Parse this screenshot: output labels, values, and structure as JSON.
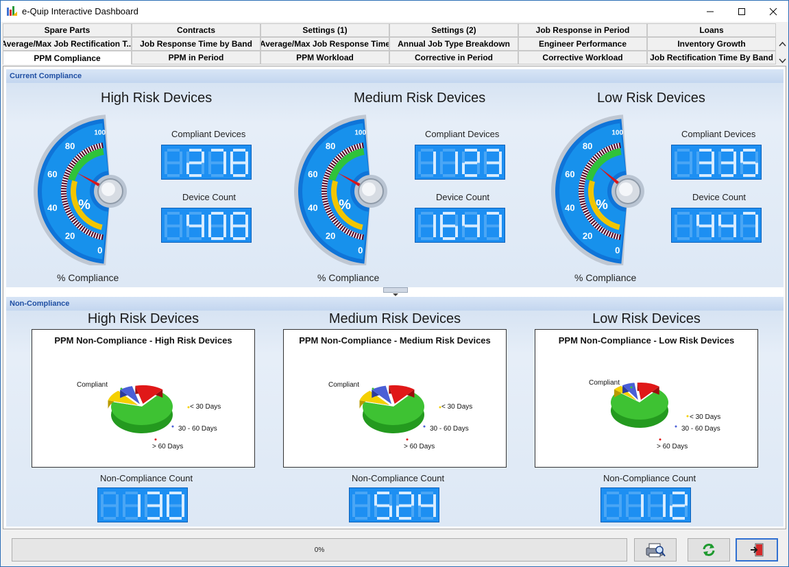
{
  "window": {
    "title": "e-Quip Interactive Dashboard"
  },
  "tabs": {
    "row1": [
      "Spare Parts",
      "Contracts",
      "Settings (1)",
      "Settings (2)",
      "Job Response in Period",
      "Loans"
    ],
    "row2": [
      "Average/Max Job Rectification T...",
      "Job Response Time by Band",
      "Average/Max Job Response Time",
      "Annual Job Type Breakdown",
      "Engineer Performance",
      "Inventory Growth"
    ],
    "row3": [
      "PPM Compliance",
      "PPM in Period",
      "PPM Workload",
      "Corrective in Period",
      "Corrective Workload",
      "Job Rectification Time By Band"
    ],
    "active": "PPM Compliance"
  },
  "current": {
    "header": "Current Compliance",
    "gauge_ticks": [
      "0",
      "20",
      "40",
      "60",
      "80",
      "100"
    ],
    "gauge_unit": "%",
    "groups": [
      {
        "title": "High Risk Devices",
        "compliant_label": "Compliant Devices",
        "compliant_value": "278",
        "count_label": "Device Count",
        "count_value": "408",
        "gauge_label": "% Compliance",
        "percent": 68.1
      },
      {
        "title": "Medium Risk Devices",
        "compliant_label": "Compliant Devices",
        "compliant_value": "1123",
        "count_label": "Device Count",
        "count_value": "1647",
        "gauge_label": "% Compliance",
        "percent": 68.2
      },
      {
        "title": "Low Risk Devices",
        "compliant_label": "Compliant Devices",
        "compliant_value": "335",
        "count_label": "Device Count",
        "count_value": "447",
        "gauge_label": "% Compliance",
        "percent": 74.9
      }
    ]
  },
  "noncompliance": {
    "header": "Non-Compliance",
    "groups": [
      {
        "title": "High Risk Devices",
        "chart_title": "PPM Non-Compliance - High Risk Devices",
        "count_label": "Non-Compliance Count",
        "count_value": "130"
      },
      {
        "title": "Medium Risk Devices",
        "chart_title": "PPM Non-Compliance - Medium Risk Devices",
        "count_label": "Non-Compliance Count",
        "count_value": "524"
      },
      {
        "title": "Low Risk Devices",
        "chart_title": "PPM Non-Compliance - Low Risk Devices",
        "count_label": "Non-Compliance Count",
        "count_value": "112"
      }
    ]
  },
  "chart_data": [
    {
      "type": "pie",
      "title": "PPM Non-Compliance - High Risk Devices",
      "categories": [
        "Compliant",
        "< 30 Days",
        "30 - 60 Days",
        "> 60 Days"
      ],
      "values": [
        68,
        10,
        7,
        15
      ],
      "colors": [
        "#3ec233",
        "#f5d000",
        "#4a5fd6",
        "#e01818"
      ]
    },
    {
      "type": "pie",
      "title": "PPM Non-Compliance - Medium Risk Devices",
      "categories": [
        "Compliant",
        "< 30 Days",
        "30 - 60 Days",
        "> 60 Days"
      ],
      "values": [
        68,
        10,
        8,
        14
      ],
      "colors": [
        "#3ec233",
        "#f5d000",
        "#4a5fd6",
        "#e01818"
      ]
    },
    {
      "type": "pie",
      "title": "PPM Non-Compliance - Low Risk Devices",
      "categories": [
        "Compliant",
        "< 30 Days",
        "30 - 60 Days",
        "> 60 Days"
      ],
      "values": [
        75,
        5,
        7,
        13
      ],
      "colors": [
        "#3ec233",
        "#f5d000",
        "#4a5fd6",
        "#e01818"
      ]
    }
  ],
  "status": {
    "progress_text": "0%",
    "progress": 0
  },
  "buttons": {
    "print": "printer-icon",
    "refresh": "refresh-icon",
    "exit": "exit-icon"
  }
}
